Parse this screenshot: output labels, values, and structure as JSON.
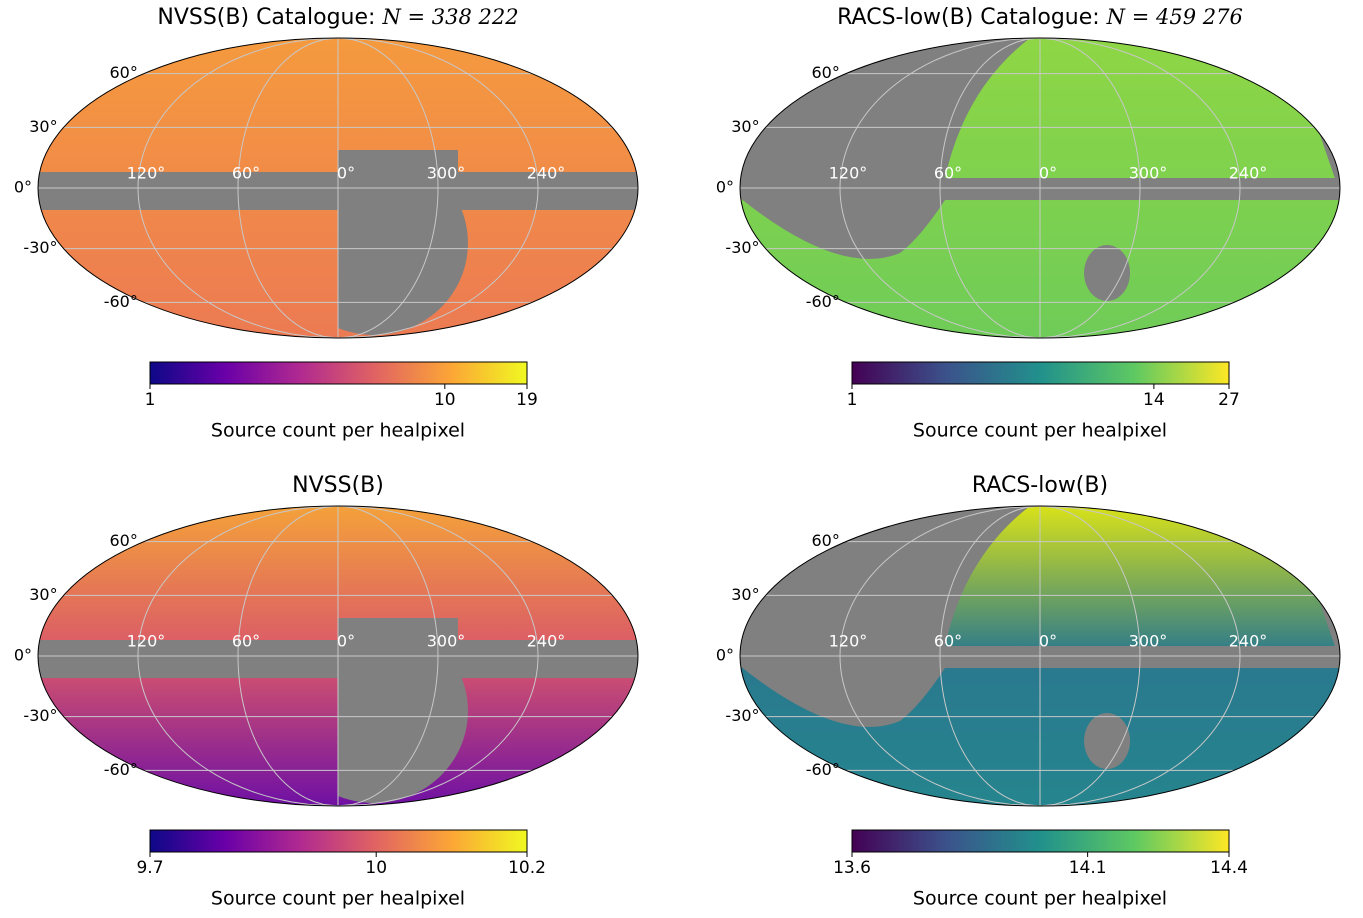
{
  "chart_data": [
    {
      "type": "mollweide",
      "title": "NVSS(B) Catalogue:",
      "title_math": "N = 338 222",
      "colorbar_label": "Source count per healpixel",
      "clim": [
        1,
        19
      ],
      "log_scale": true,
      "cticks": [
        1,
        10,
        19
      ],
      "cmap": [
        "#0d0887",
        "#6a00a8",
        "#b12a90",
        "#e16462",
        "#fca636",
        "#f0f921"
      ],
      "map_colors": [
        "#f59a3e",
        "#ec7a53"
      ],
      "lat_ticks": [
        {
          "value": 60,
          "label": "60°"
        },
        {
          "value": 30,
          "label": "30°"
        },
        {
          "value": 0,
          "label": "0°"
        },
        {
          "value": -30,
          "label": "-30°"
        },
        {
          "value": -60,
          "label": "-60°"
        }
      ],
      "lon_ticks": [
        {
          "value": 120,
          "label": "120°"
        },
        {
          "value": 60,
          "label": "60°"
        },
        {
          "value": 0,
          "label": "0°"
        },
        {
          "value": 300,
          "label": "300°"
        },
        {
          "value": 240,
          "label": "240°"
        }
      ]
    },
    {
      "type": "mollweide",
      "title": "RACS-low(B) Catalogue:",
      "title_math": "N = 459 276",
      "colorbar_label": "Source count per healpixel",
      "clim": [
        1,
        27
      ],
      "log_scale": true,
      "cticks": [
        1,
        14,
        27
      ],
      "cmap": [
        "#440154",
        "#3b528b",
        "#21918c",
        "#5ec962",
        "#fde725"
      ],
      "map_colors": [
        "#8ed645",
        "#6fcc58"
      ],
      "lat_ticks": [
        {
          "value": 60,
          "label": "60°"
        },
        {
          "value": 30,
          "label": "30°"
        },
        {
          "value": 0,
          "label": "0°"
        },
        {
          "value": -30,
          "label": "-30°"
        },
        {
          "value": -60,
          "label": "-60°"
        }
      ],
      "lon_ticks": [
        {
          "value": 120,
          "label": "120°"
        },
        {
          "value": 60,
          "label": "60°"
        },
        {
          "value": 0,
          "label": "0°"
        },
        {
          "value": 300,
          "label": "300°"
        },
        {
          "value": 240,
          "label": "240°"
        }
      ]
    },
    {
      "type": "mollweide",
      "title": "NVSS(B)",
      "colorbar_label": "Source count per healpixel",
      "clim": [
        9.7,
        10.2
      ],
      "log_scale": false,
      "cticks": [
        9.7,
        10,
        10.2
      ],
      "cmap": [
        "#0d0887",
        "#6a00a8",
        "#b12a90",
        "#e16462",
        "#fca636",
        "#f0f921"
      ],
      "map_colors": [
        "#f4a13a",
        "#d9576a",
        "#6f10a4"
      ],
      "lat_ticks": [
        {
          "value": 60,
          "label": "60°"
        },
        {
          "value": 30,
          "label": "30°"
        },
        {
          "value": 0,
          "label": "0°"
        },
        {
          "value": -30,
          "label": "-30°"
        },
        {
          "value": -60,
          "label": "-60°"
        }
      ],
      "lon_ticks": [
        {
          "value": 120,
          "label": "120°"
        },
        {
          "value": 60,
          "label": "60°"
        },
        {
          "value": 0,
          "label": "0°"
        },
        {
          "value": 300,
          "label": "300°"
        },
        {
          "value": 240,
          "label": "240°"
        }
      ]
    },
    {
      "type": "mollweide",
      "title": "RACS-low(B)",
      "colorbar_label": "Source count per healpixel",
      "clim": [
        13.6,
        14.4
      ],
      "log_scale": false,
      "cticks": [
        13.6,
        14.1,
        14.4
      ],
      "cmap": [
        "#440154",
        "#3b528b",
        "#21918c",
        "#5ec962",
        "#fde725"
      ],
      "map_colors": [
        "#d8e219",
        "#2a788e",
        "#25858e"
      ],
      "lat_ticks": [
        {
          "value": 60,
          "label": "60°"
        },
        {
          "value": 30,
          "label": "30°"
        },
        {
          "value": 0,
          "label": "0°"
        },
        {
          "value": -30,
          "label": "-30°"
        },
        {
          "value": -60,
          "label": "-60°"
        }
      ],
      "lon_ticks": [
        {
          "value": 120,
          "label": "120°"
        },
        {
          "value": 60,
          "label": "60°"
        },
        {
          "value": 0,
          "label": "0°"
        },
        {
          "value": 300,
          "label": "300°"
        },
        {
          "value": 240,
          "label": "240°"
        }
      ]
    }
  ]
}
